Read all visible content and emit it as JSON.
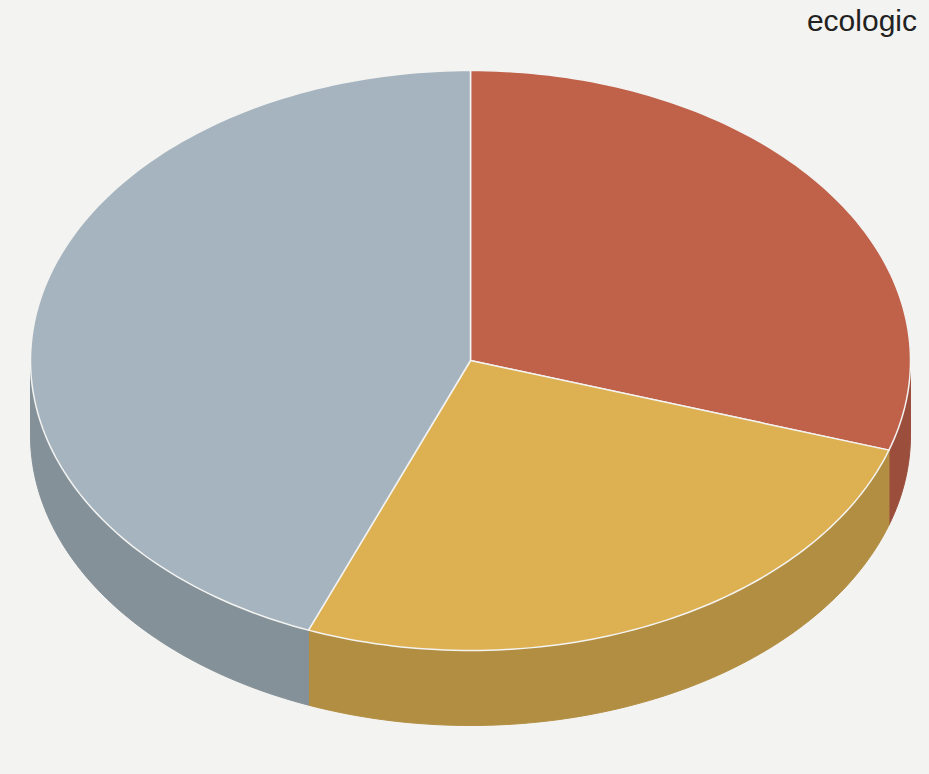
{
  "chart_data": {
    "type": "pie",
    "title": "ecologic",
    "values": [
      30,
      26,
      44
    ],
    "colors": [
      "#c0614a",
      "#ddb052",
      "#a5b4be"
    ],
    "data_labels": false
  }
}
